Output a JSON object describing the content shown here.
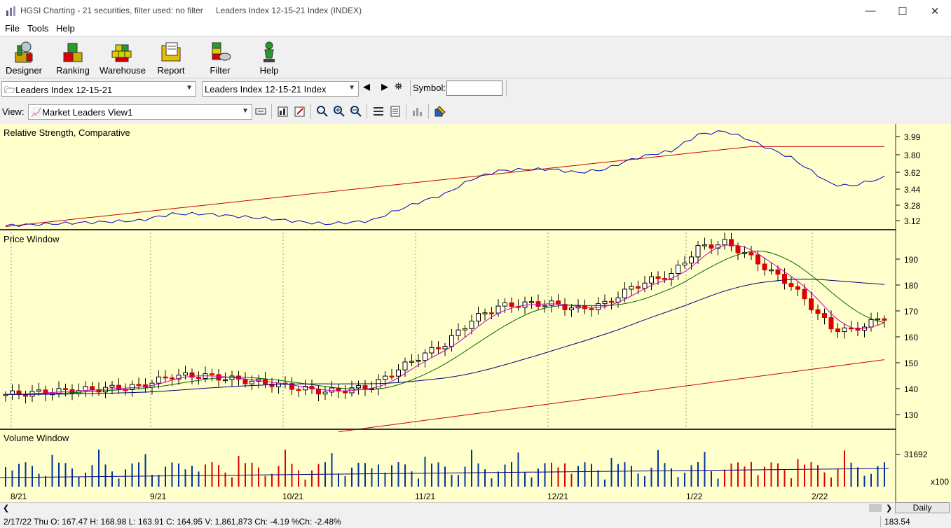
{
  "window": {
    "title": "HGSI Charting - 21 securities, filter used: no filter",
    "subtitle": "Leaders Index 12-15-21 Index (INDEX)",
    "minimize": "—",
    "maximize": "☐",
    "close": "✕"
  },
  "menu": [
    "File",
    "Tools",
    "Help"
  ],
  "toolbar": [
    {
      "label": "Designer",
      "icon": "designer-icon"
    },
    {
      "label": "Ranking",
      "icon": "ranking-icon"
    },
    {
      "label": "Warehouse",
      "icon": "warehouse-icon"
    },
    {
      "label": "Report",
      "icon": "report-icon"
    },
    {
      "label": "Filter",
      "icon": "filter-icon"
    },
    {
      "label": "Help",
      "icon": "help-icon"
    }
  ],
  "selectors": {
    "list": "Leaders Index 12-15-21",
    "security": "Leaders Index 12-15-21 Index",
    "symbol_label": "Symbol:",
    "symbol_value": ""
  },
  "view": {
    "label": "View:",
    "value": "Market Leaders View1"
  },
  "panes": {
    "rs_title": "Relative Strength, Comparative",
    "price_title": "Price Window",
    "volume_title": "Volume Window"
  },
  "axes": {
    "rs_ticks": [
      "3.99",
      "3.80",
      "3.62",
      "3.44",
      "3.28",
      "3.12"
    ],
    "price_ticks": [
      "190",
      "180",
      "170",
      "160",
      "150",
      "140",
      "130"
    ],
    "volume_tick": "31692",
    "volume_unit": "x100",
    "dates": [
      "8/21",
      "9/21",
      "10/21",
      "11/21",
      "12/21",
      "1/22",
      "2/22"
    ]
  },
  "status": {
    "text": "2/17/22 Thu O: 167.47 H: 168.98 L: 163.91 C: 164.95 V: 1,861,873 Ch: -4.19 %Ch: -2.48%",
    "period": "Daily",
    "readout": "183.54"
  },
  "colors": {
    "chart_bg": "#ffffcc",
    "up": "#ffffff",
    "down": "#e00000",
    "rs_line": "#0000cc",
    "ma_long": "#cc0000",
    "ma_mid": "#000080",
    "ma_short": "#006600",
    "ma_fast": "#cc00cc"
  },
  "chart_data": {
    "type": "candlestick",
    "price_ylim": [
      125,
      197
    ],
    "rs_ylim": [
      3.08,
      4.05
    ],
    "last_bar": {
      "date": "2/17/22",
      "open": 167.47,
      "high": 168.98,
      "low": 163.91,
      "close": 164.95,
      "volume": 1861873
    }
  }
}
